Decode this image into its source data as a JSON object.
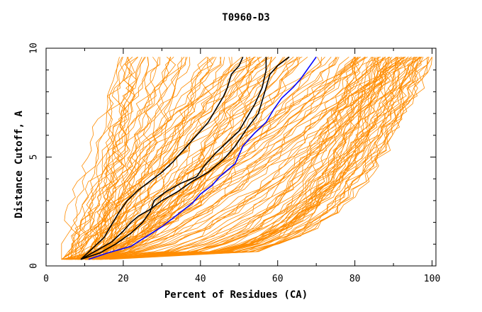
{
  "chart_data": {
    "type": "line",
    "title": "T0960-D3",
    "xlabel": "Percent of Residues (CA)",
    "ylabel": "Distance Cutoff, A",
    "xlim": [
      0,
      101
    ],
    "ylim": [
      0,
      10
    ],
    "x_ticks": [
      0,
      20,
      40,
      60,
      80,
      100
    ],
    "y_ticks": [
      0,
      5,
      10
    ],
    "grid": false,
    "legend": "none",
    "colors": {
      "background_series": "#ff8c00",
      "highlight_black": "#000000",
      "highlight_blue": "#0000ff",
      "frame": "#000000"
    },
    "series": [
      {
        "color": "#0000ff",
        "x": [
          11,
          16,
          22,
          30,
          38,
          40,
          43,
          45,
          47,
          49,
          51,
          54,
          57,
          59,
          61,
          64,
          66,
          68,
          70
        ],
        "y": [
          0.3,
          0.6,
          0.9,
          1.8,
          2.9,
          3.3,
          3.7,
          4.1,
          4.4,
          4.7,
          5.5,
          6.1,
          6.6,
          7.2,
          7.7,
          8.2,
          8.6,
          9.1,
          9.6
        ]
      },
      {
        "color": "#000000",
        "x": [
          9,
          14,
          18,
          22,
          25,
          27,
          28,
          31,
          35,
          39,
          41,
          44,
          47,
          50,
          52,
          54,
          56,
          57,
          57
        ],
        "y": [
          0.3,
          0.6,
          1.0,
          1.5,
          2.0,
          2.5,
          3.0,
          3.4,
          3.8,
          4.1,
          4.6,
          5.2,
          5.7,
          6.2,
          6.8,
          7.4,
          8.2,
          9.0,
          9.6
        ]
      },
      {
        "color": "#000000",
        "x": [
          9,
          13,
          17,
          20,
          22,
          24,
          27,
          30,
          34,
          38,
          42,
          46,
          49,
          52,
          55,
          56,
          57,
          58,
          60,
          63
        ],
        "y": [
          0.3,
          0.7,
          1.1,
          1.6,
          2.0,
          2.3,
          2.6,
          3.0,
          3.4,
          3.9,
          4.3,
          4.9,
          5.5,
          6.3,
          7.0,
          7.6,
          8.2,
          8.8,
          9.2,
          9.6
        ]
      },
      {
        "color": "#000000",
        "x": [
          9,
          12,
          15,
          17,
          19,
          21,
          24,
          27,
          30,
          33,
          36,
          39,
          42,
          44,
          46,
          47,
          48,
          50,
          51
        ],
        "y": [
          0.3,
          0.8,
          1.3,
          1.9,
          2.5,
          3.0,
          3.5,
          3.9,
          4.3,
          4.8,
          5.4,
          6.0,
          6.6,
          7.2,
          7.8,
          8.2,
          8.8,
          9.2,
          9.6
        ]
      }
    ]
  }
}
